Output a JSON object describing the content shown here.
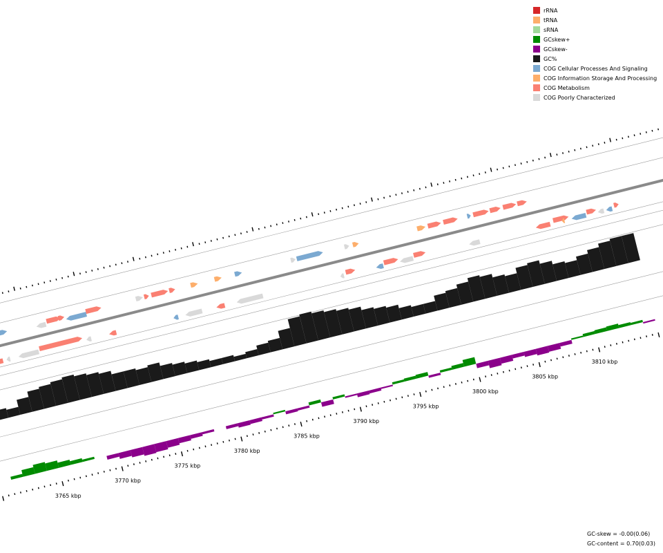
{
  "legend": [
    {
      "label": "rRNA",
      "color": "#d62728"
    },
    {
      "label": "tRNA",
      "color": "#fdae6b"
    },
    {
      "label": "sRNA",
      "color": "#a1d99b"
    },
    {
      "label": "GCskew+",
      "color": "#008b00"
    },
    {
      "label": "GCskew-",
      "color": "#8b008b"
    },
    {
      "label": "GC%",
      "color": "#1a1a1a"
    },
    {
      "label": "COG Cellular Processes And Signaling",
      "color": "#7ba9d1"
    },
    {
      "label": "COG Information Storage And Processing",
      "color": "#fdae6b"
    },
    {
      "label": "COG Metabolism",
      "color": "#fa8072"
    },
    {
      "label": "COG Poorly Characterized",
      "color": "#d9d9d9"
    }
  ],
  "ticks": [
    {
      "label": "3765 kbp",
      "kbp": 3765
    },
    {
      "label": "3770 kbp",
      "kbp": 3770
    },
    {
      "label": "3775 kbp",
      "kbp": 3775
    },
    {
      "label": "3780 kbp",
      "kbp": 3780
    },
    {
      "label": "3785 kbp",
      "kbp": 3785
    },
    {
      "label": "3790 kbp",
      "kbp": 3790
    },
    {
      "label": "3795 kbp",
      "kbp": 3795
    },
    {
      "label": "3800 kbp",
      "kbp": 3800
    },
    {
      "label": "3805 kbp",
      "kbp": 3805
    },
    {
      "label": "3810 kbp",
      "kbp": 3810
    }
  ],
  "stats": {
    "gc_skew": "GC-skew = -0.00(0.06)",
    "gc_content": "GC-content = 0.70(0.03)"
  },
  "genes_outer": [
    {
      "kbp": 3762.9,
      "len": 0.7,
      "strand": "+",
      "cog": "cell"
    },
    {
      "kbp": 3766.0,
      "len": 0.8,
      "strand": "-",
      "cog": "poor"
    },
    {
      "kbp": 3766.9,
      "len": 1.2,
      "strand": "+",
      "cog": "meta"
    },
    {
      "kbp": 3767.9,
      "len": 0.5,
      "strand": "+",
      "cog": "meta"
    },
    {
      "kbp": 3768.5,
      "len": 1.7,
      "strand": "-",
      "cog": "cell"
    },
    {
      "kbp": 3770.2,
      "len": 1.3,
      "strand": "+",
      "cog": "meta"
    },
    {
      "kbp": 3774.4,
      "len": 0.6,
      "strand": "+",
      "cog": "poor"
    },
    {
      "kbp": 3775.1,
      "len": 0.4,
      "strand": "+",
      "cog": "meta"
    },
    {
      "kbp": 3775.7,
      "len": 1.4,
      "strand": "+",
      "cog": "meta"
    },
    {
      "kbp": 3777.2,
      "len": 0.5,
      "strand": "+",
      "cog": "meta"
    },
    {
      "kbp": 3779.0,
      "len": 0.6,
      "strand": "+",
      "cog": "info"
    },
    {
      "kbp": 3781.0,
      "len": 0.6,
      "strand": "+",
      "cog": "info"
    },
    {
      "kbp": 3782.7,
      "len": 0.6,
      "strand": "+",
      "cog": "cell"
    },
    {
      "kbp": 3787.4,
      "len": 0.4,
      "strand": "+",
      "cog": "poor"
    },
    {
      "kbp": 3787.9,
      "len": 2.2,
      "strand": "+",
      "cog": "cell"
    },
    {
      "kbp": 3791.9,
      "len": 0.4,
      "strand": "+",
      "cog": "poor"
    },
    {
      "kbp": 3792.6,
      "len": 0.5,
      "strand": "+",
      "cog": "info"
    },
    {
      "kbp": 3798.0,
      "len": 0.7,
      "strand": "+",
      "cog": "info"
    },
    {
      "kbp": 3798.9,
      "len": 1.1,
      "strand": "+",
      "cog": "meta"
    },
    {
      "kbp": 3800.2,
      "len": 1.2,
      "strand": "+",
      "cog": "meta"
    },
    {
      "kbp": 3802.2,
      "len": 0.3,
      "strand": "+",
      "cog": "cell"
    },
    {
      "kbp": 3802.7,
      "len": 1.3,
      "strand": "+",
      "cog": "meta"
    },
    {
      "kbp": 3804.1,
      "len": 0.9,
      "strand": "+",
      "cog": "meta"
    },
    {
      "kbp": 3805.2,
      "len": 1.1,
      "strand": "+",
      "cog": "meta"
    },
    {
      "kbp": 3806.4,
      "len": 0.8,
      "strand": "+",
      "cog": "meta"
    }
  ],
  "genes_inner": [
    {
      "kbp": 3762.0,
      "len": 0.7,
      "strand": "-",
      "cog": "meta"
    },
    {
      "kbp": 3763.0,
      "len": 0.3,
      "strand": "-",
      "cog": "poor"
    },
    {
      "kbp": 3764.0,
      "len": 1.7,
      "strand": "-",
      "cog": "poor"
    },
    {
      "kbp": 3765.8,
      "len": 3.6,
      "strand": "+",
      "cog": "meta"
    },
    {
      "kbp": 3769.7,
      "len": 0.4,
      "strand": "-",
      "cog": "poor"
    },
    {
      "kbp": 3771.6,
      "len": 0.6,
      "strand": "-",
      "cog": "meta"
    },
    {
      "kbp": 3777.0,
      "len": 0.4,
      "strand": "-",
      "cog": "cell"
    },
    {
      "kbp": 3778.0,
      "len": 1.4,
      "strand": "-",
      "cog": "poor"
    },
    {
      "kbp": 3780.6,
      "len": 0.7,
      "strand": "-",
      "cog": "meta"
    },
    {
      "kbp": 3782.3,
      "len": 2.2,
      "strand": "-",
      "cog": "poor"
    },
    {
      "kbp": 3791.0,
      "len": 0.3,
      "strand": "-",
      "cog": "poor"
    },
    {
      "kbp": 3791.5,
      "len": 0.8,
      "strand": "+",
      "cog": "meta"
    },
    {
      "kbp": 3794.0,
      "len": 0.6,
      "strand": "-",
      "cog": "cell"
    },
    {
      "kbp": 3794.7,
      "len": 1.2,
      "strand": "+",
      "cog": "meta"
    },
    {
      "kbp": 3796.0,
      "len": 1.1,
      "strand": "-",
      "cog": "poor"
    },
    {
      "kbp": 3797.2,
      "len": 1.0,
      "strand": "+",
      "cog": "meta"
    },
    {
      "kbp": 3801.8,
      "len": 0.9,
      "strand": "-",
      "cog": "poor"
    },
    {
      "kbp": 3807.4,
      "len": 1.2,
      "strand": "-",
      "cog": "meta"
    },
    {
      "kbp": 3808.9,
      "len": 1.3,
      "strand": "+",
      "cog": "meta"
    },
    {
      "kbp": 3810.4,
      "len": 1.2,
      "strand": "-",
      "cog": "cell"
    },
    {
      "kbp": 3811.7,
      "len": 0.8,
      "strand": "+",
      "cog": "meta"
    },
    {
      "kbp": 3812.6,
      "len": 0.5,
      "strand": "-",
      "cog": "poor"
    },
    {
      "kbp": 3813.3,
      "len": 0.5,
      "strand": "-",
      "cog": "cell"
    },
    {
      "kbp": 3814.0,
      "len": 0.4,
      "strand": "+",
      "cog": "meta"
    },
    {
      "kbp": 3809.6,
      "len": 0.2,
      "strand": "-",
      "cog": "info"
    }
  ],
  "gc_content": [
    [
      3760.0,
      0.64
    ],
    [
      3761.0,
      0.66
    ],
    [
      3762.0,
      0.65
    ],
    [
      3763.0,
      0.69
    ],
    [
      3764.0,
      0.72
    ],
    [
      3765.0,
      0.73
    ],
    [
      3766.0,
      0.74
    ],
    [
      3767.0,
      0.75
    ],
    [
      3768.0,
      0.74
    ],
    [
      3769.0,
      0.73
    ],
    [
      3770.0,
      0.72
    ],
    [
      3771.0,
      0.7
    ],
    [
      3772.0,
      0.7
    ],
    [
      3773.0,
      0.69
    ],
    [
      3774.0,
      0.7
    ],
    [
      3775.0,
      0.68
    ],
    [
      3776.0,
      0.67
    ],
    [
      3777.0,
      0.66
    ],
    [
      3778.0,
      0.65
    ],
    [
      3779.0,
      0.64
    ],
    [
      3780.0,
      0.64
    ],
    [
      3781.0,
      0.63
    ],
    [
      3782.0,
      0.64
    ],
    [
      3783.0,
      0.66
    ],
    [
      3784.0,
      0.67
    ],
    [
      3785.0,
      0.71
    ],
    [
      3786.0,
      0.76
    ],
    [
      3787.0,
      0.77
    ],
    [
      3788.0,
      0.76
    ],
    [
      3789.0,
      0.75
    ],
    [
      3790.0,
      0.74
    ],
    [
      3791.0,
      0.73
    ],
    [
      3792.0,
      0.71
    ],
    [
      3793.0,
      0.7
    ],
    [
      3794.0,
      0.69
    ],
    [
      3795.0,
      0.67
    ],
    [
      3796.0,
      0.66
    ],
    [
      3797.0,
      0.66
    ],
    [
      3798.0,
      0.69
    ],
    [
      3799.0,
      0.7
    ],
    [
      3800.0,
      0.72
    ],
    [
      3801.0,
      0.74
    ],
    [
      3802.0,
      0.73
    ],
    [
      3803.0,
      0.71
    ],
    [
      3804.0,
      0.7
    ],
    [
      3805.0,
      0.73
    ],
    [
      3806.0,
      0.74
    ],
    [
      3807.0,
      0.72
    ],
    [
      3808.0,
      0.7
    ],
    [
      3809.0,
      0.69
    ],
    [
      3810.0,
      0.71
    ],
    [
      3811.0,
      0.73
    ],
    [
      3812.0,
      0.75
    ],
    [
      3813.0,
      0.76
    ],
    [
      3814.0,
      0.76
    ],
    [
      3815.0,
      0.75
    ]
  ],
  "gc_skew": [
    [
      3760.0,
      0.0
    ],
    [
      3761.0,
      0.04
    ],
    [
      3762.0,
      0.09
    ],
    [
      3763.0,
      0.12
    ],
    [
      3764.0,
      0.1
    ],
    [
      3765.0,
      0.07
    ],
    [
      3766.0,
      0.05
    ],
    [
      3767.0,
      0.03
    ],
    [
      3768.0,
      0.0
    ],
    [
      3769.0,
      -0.05
    ],
    [
      3770.0,
      -0.08
    ],
    [
      3771.0,
      -0.1
    ],
    [
      3772.0,
      -0.12
    ],
    [
      3773.0,
      -0.11
    ],
    [
      3774.0,
      -0.09
    ],
    [
      3775.0,
      -0.07
    ],
    [
      3776.0,
      -0.05
    ],
    [
      3777.0,
      -0.03
    ],
    [
      3778.0,
      0.0
    ],
    [
      3779.0,
      -0.04
    ],
    [
      3780.0,
      -0.06
    ],
    [
      3781.0,
      -0.05
    ],
    [
      3782.0,
      -0.03
    ],
    [
      3783.0,
      0.02
    ],
    [
      3784.0,
      -0.04
    ],
    [
      3785.0,
      -0.03
    ],
    [
      3786.0,
      0.04
    ],
    [
      3787.0,
      -0.06
    ],
    [
      3788.0,
      0.03
    ],
    [
      3789.0,
      -0.02
    ],
    [
      3790.0,
      -0.05
    ],
    [
      3791.0,
      -0.04
    ],
    [
      3792.0,
      -0.02
    ],
    [
      3793.0,
      0.03
    ],
    [
      3794.0,
      0.04
    ],
    [
      3795.0,
      0.05
    ],
    [
      3796.0,
      -0.03
    ],
    [
      3797.0,
      0.03
    ],
    [
      3798.0,
      0.05
    ],
    [
      3799.0,
      0.09
    ],
    [
      3800.0,
      -0.06
    ],
    [
      3801.0,
      -0.1
    ],
    [
      3802.0,
      -0.08
    ],
    [
      3803.0,
      -0.05
    ],
    [
      3804.0,
      -0.07
    ],
    [
      3805.0,
      -0.09
    ],
    [
      3806.0,
      -0.08
    ],
    [
      3807.0,
      -0.05
    ],
    [
      3808.0,
      0.02
    ],
    [
      3809.0,
      0.04
    ],
    [
      3810.0,
      0.05
    ],
    [
      3811.0,
      0.06
    ],
    [
      3812.0,
      0.04
    ],
    [
      3813.0,
      0.03
    ],
    [
      3814.0,
      -0.02
    ],
    [
      3815.0,
      0.05
    ]
  ],
  "cog_colors": {
    "cell": "#7ba9d1",
    "info": "#fdae6b",
    "meta": "#fa8072",
    "poor": "#d9d9d9",
    "other": "#b3b3b3"
  }
}
